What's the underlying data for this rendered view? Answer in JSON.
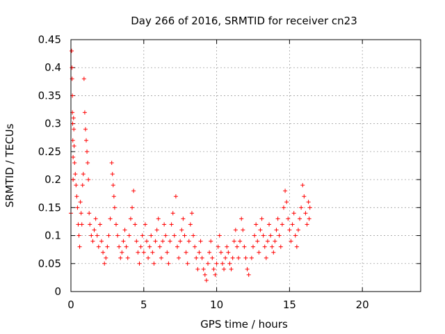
{
  "chart_data": {
    "type": "scatter",
    "title": "Day 266 of 2016, SRMTID for receiver cn23",
    "xlabel": "GPS time / hours",
    "ylabel": "SRMTID / TECUs",
    "xlim": [
      0,
      24
    ],
    "ylim": [
      0,
      0.45
    ],
    "x_ticks": [
      0,
      5,
      10,
      15,
      20
    ],
    "y_ticks": [
      0,
      0.05,
      0.1,
      0.15,
      0.2,
      0.25,
      0.3,
      0.35,
      0.4,
      0.45
    ],
    "grid": true,
    "legend": "none",
    "marker": "plus",
    "colors": {
      "series": "#ff0000",
      "grid": "#a0a0a0",
      "axis": "#000000"
    },
    "series": [
      {
        "points": [
          [
            0.0,
            0.14
          ],
          [
            0.05,
            0.43
          ],
          [
            0.07,
            0.4
          ],
          [
            0.08,
            0.38
          ],
          [
            0.1,
            0.35
          ],
          [
            0.1,
            0.32
          ],
          [
            0.12,
            0.3
          ],
          [
            0.13,
            0.27
          ],
          [
            0.15,
            0.24
          ],
          [
            0.15,
            0.2
          ],
          [
            0.18,
            0.31
          ],
          [
            0.2,
            0.29
          ],
          [
            0.22,
            0.26
          ],
          [
            0.25,
            0.23
          ],
          [
            0.3,
            0.21
          ],
          [
            0.35,
            0.19
          ],
          [
            0.4,
            0.17
          ],
          [
            0.45,
            0.15
          ],
          [
            0.5,
            0.12
          ],
          [
            0.55,
            0.1
          ],
          [
            0.6,
            0.08
          ],
          [
            0.65,
            0.16
          ],
          [
            0.7,
            0.14
          ],
          [
            0.75,
            0.12
          ],
          [
            0.8,
            0.19
          ],
          [
            0.85,
            0.21
          ],
          [
            0.9,
            0.38
          ],
          [
            0.95,
            0.32
          ],
          [
            1.0,
            0.29
          ],
          [
            1.05,
            0.27
          ],
          [
            1.1,
            0.25
          ],
          [
            1.15,
            0.23
          ],
          [
            1.2,
            0.2
          ],
          [
            1.25,
            0.14
          ],
          [
            1.3,
            0.12
          ],
          [
            1.4,
            0.1
          ],
          [
            1.5,
            0.09
          ],
          [
            1.6,
            0.11
          ],
          [
            1.7,
            0.13
          ],
          [
            1.8,
            0.1
          ],
          [
            1.9,
            0.08
          ],
          [
            2.0,
            0.12
          ],
          [
            2.1,
            0.09
          ],
          [
            2.2,
            0.07
          ],
          [
            2.3,
            0.05
          ],
          [
            2.4,
            0.06
          ],
          [
            2.5,
            0.08
          ],
          [
            2.6,
            0.1
          ],
          [
            2.7,
            0.13
          ],
          [
            2.8,
            0.23
          ],
          [
            2.85,
            0.21
          ],
          [
            2.9,
            0.19
          ],
          [
            2.95,
            0.17
          ],
          [
            3.0,
            0.15
          ],
          [
            3.1,
            0.12
          ],
          [
            3.2,
            0.1
          ],
          [
            3.3,
            0.08
          ],
          [
            3.4,
            0.06
          ],
          [
            3.5,
            0.07
          ],
          [
            3.6,
            0.09
          ],
          [
            3.7,
            0.11
          ],
          [
            3.8,
            0.08
          ],
          [
            3.9,
            0.06
          ],
          [
            4.0,
            0.1
          ],
          [
            4.1,
            0.13
          ],
          [
            4.2,
            0.15
          ],
          [
            4.3,
            0.18
          ],
          [
            4.4,
            0.12
          ],
          [
            4.5,
            0.09
          ],
          [
            4.6,
            0.07
          ],
          [
            4.7,
            0.05
          ],
          [
            4.8,
            0.08
          ],
          [
            4.9,
            0.1
          ],
          [
            5.0,
            0.07
          ],
          [
            5.1,
            0.12
          ],
          [
            5.2,
            0.09
          ],
          [
            5.3,
            0.06
          ],
          [
            5.4,
            0.08
          ],
          [
            5.5,
            0.1
          ],
          [
            5.6,
            0.07
          ],
          [
            5.7,
            0.05
          ],
          [
            5.8,
            0.09
          ],
          [
            5.9,
            0.11
          ],
          [
            6.0,
            0.13
          ],
          [
            6.1,
            0.08
          ],
          [
            6.2,
            0.06
          ],
          [
            6.3,
            0.09
          ],
          [
            6.4,
            0.12
          ],
          [
            6.5,
            0.1
          ],
          [
            6.6,
            0.07
          ],
          [
            6.7,
            0.05
          ],
          [
            6.8,
            0.09
          ],
          [
            6.9,
            0.12
          ],
          [
            7.0,
            0.14
          ],
          [
            7.1,
            0.1
          ],
          [
            7.2,
            0.17
          ],
          [
            7.3,
            0.08
          ],
          [
            7.4,
            0.06
          ],
          [
            7.5,
            0.09
          ],
          [
            7.6,
            0.11
          ],
          [
            7.7,
            0.13
          ],
          [
            7.8,
            0.1
          ],
          [
            7.9,
            0.07
          ],
          [
            8.0,
            0.05
          ],
          [
            8.1,
            0.09
          ],
          [
            8.2,
            0.12
          ],
          [
            8.3,
            0.14
          ],
          [
            8.4,
            0.1
          ],
          [
            8.5,
            0.08
          ],
          [
            8.6,
            0.06
          ],
          [
            8.7,
            0.04
          ],
          [
            8.8,
            0.07
          ],
          [
            8.9,
            0.09
          ],
          [
            9.0,
            0.06
          ],
          [
            9.1,
            0.04
          ],
          [
            9.2,
            0.03
          ],
          [
            9.3,
            0.02
          ],
          [
            9.4,
            0.05
          ],
          [
            9.5,
            0.07
          ],
          [
            9.6,
            0.09
          ],
          [
            9.7,
            0.06
          ],
          [
            9.8,
            0.04
          ],
          [
            9.9,
            0.03
          ],
          [
            10.0,
            0.05
          ],
          [
            10.1,
            0.08
          ],
          [
            10.2,
            0.1
          ],
          [
            10.3,
            0.07
          ],
          [
            10.4,
            0.05
          ],
          [
            10.5,
            0.04
          ],
          [
            10.6,
            0.06
          ],
          [
            10.7,
            0.08
          ],
          [
            10.8,
            0.07
          ],
          [
            10.9,
            0.05
          ],
          [
            11.0,
            0.04
          ],
          [
            11.1,
            0.06
          ],
          [
            11.2,
            0.09
          ],
          [
            11.3,
            0.11
          ],
          [
            11.4,
            0.08
          ],
          [
            11.5,
            0.06
          ],
          [
            11.6,
            0.09
          ],
          [
            11.7,
            0.13
          ],
          [
            11.8,
            0.11
          ],
          [
            11.9,
            0.08
          ],
          [
            12.0,
            0.06
          ],
          [
            12.1,
            0.04
          ],
          [
            12.2,
            0.03
          ],
          [
            12.4,
            0.06
          ],
          [
            12.5,
            0.08
          ],
          [
            12.6,
            0.1
          ],
          [
            12.7,
            0.12
          ],
          [
            12.8,
            0.09
          ],
          [
            12.9,
            0.07
          ],
          [
            13.0,
            0.11
          ],
          [
            13.1,
            0.13
          ],
          [
            13.2,
            0.1
          ],
          [
            13.3,
            0.08
          ],
          [
            13.4,
            0.06
          ],
          [
            13.5,
            0.09
          ],
          [
            13.6,
            0.12
          ],
          [
            13.7,
            0.1
          ],
          [
            13.8,
            0.08
          ],
          [
            13.9,
            0.07
          ],
          [
            14.0,
            0.09
          ],
          [
            14.1,
            0.11
          ],
          [
            14.2,
            0.13
          ],
          [
            14.3,
            0.1
          ],
          [
            14.4,
            0.08
          ],
          [
            14.5,
            0.12
          ],
          [
            14.6,
            0.15
          ],
          [
            14.7,
            0.18
          ],
          [
            14.8,
            0.16
          ],
          [
            14.9,
            0.13
          ],
          [
            15.0,
            0.11
          ],
          [
            15.1,
            0.09
          ],
          [
            15.2,
            0.12
          ],
          [
            15.3,
            0.14
          ],
          [
            15.4,
            0.1
          ],
          [
            15.5,
            0.08
          ],
          [
            15.6,
            0.11
          ],
          [
            15.7,
            0.13
          ],
          [
            15.8,
            0.15
          ],
          [
            15.9,
            0.19
          ],
          [
            16.0,
            0.17
          ],
          [
            16.1,
            0.14
          ],
          [
            16.2,
            0.12
          ],
          [
            16.3,
            0.16
          ],
          [
            16.35,
            0.13
          ],
          [
            16.4,
            0.15
          ]
        ]
      }
    ]
  }
}
